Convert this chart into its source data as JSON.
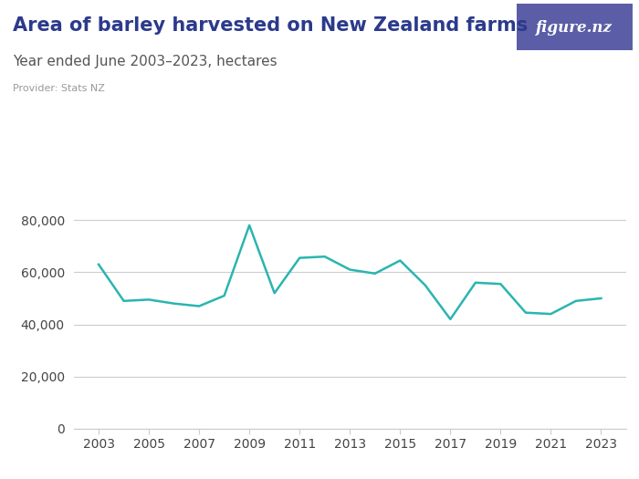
{
  "title": "Area of barley harvested on New Zealand farms",
  "subtitle": "Year ended June 2003–2023, hectares",
  "provider": "Provider: Stats NZ",
  "years": [
    2003,
    2004,
    2005,
    2006,
    2007,
    2008,
    2009,
    2010,
    2011,
    2012,
    2013,
    2014,
    2015,
    2016,
    2017,
    2018,
    2019,
    2020,
    2021,
    2022,
    2023
  ],
  "values": [
    63000,
    49000,
    49500,
    48000,
    47000,
    51000,
    78000,
    52000,
    65500,
    66000,
    61000,
    59500,
    64500,
    55000,
    42000,
    56000,
    55500,
    44500,
    44000,
    49000,
    50000
  ],
  "line_color": "#2ab5b0",
  "bg_color": "#ffffff",
  "grid_color": "#cccccc",
  "title_color": "#2b3a8c",
  "subtitle_color": "#555555",
  "provider_color": "#999999",
  "ylim": [
    0,
    90000
  ],
  "yticks": [
    0,
    20000,
    40000,
    60000,
    80000
  ],
  "xticks": [
    2003,
    2005,
    2007,
    2009,
    2011,
    2013,
    2015,
    2017,
    2019,
    2021,
    2023
  ],
  "logo_bg": "#5b5ea6",
  "logo_text": "figure.nz",
  "line_width": 1.8,
  "title_fontsize": 15,
  "subtitle_fontsize": 11,
  "provider_fontsize": 8,
  "tick_fontsize": 10
}
